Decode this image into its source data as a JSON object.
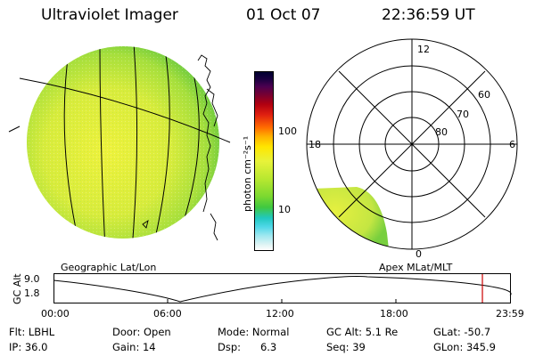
{
  "header": {
    "instrument": "Ultraviolet Imager",
    "date": "01 Oct 07",
    "time": "22:36:59 UT"
  },
  "colorbar": {
    "unit_label": "photon cm⁻²s⁻¹",
    "ticks": [
      "100",
      "10"
    ]
  },
  "polar_plot": {
    "mlt_labels": [
      "12",
      "18",
      "6",
      "0"
    ],
    "lat_labels": [
      "60",
      "70",
      "80"
    ]
  },
  "map_labels": {
    "left": "Geographic Lat/Lon",
    "right": "Apex MLat/MLT"
  },
  "altitude_plot": {
    "ylabel": "GC Alt",
    "y_ticks": [
      "9.0",
      "1.8"
    ],
    "x_ticks": [
      "00:00",
      "06:00",
      "12:00",
      "18:00",
      "23:59"
    ]
  },
  "footer": {
    "filter": "Flt: LBHL",
    "ip": "IP: 36.0",
    "door": "Door: Open",
    "gain": "Gain: 14",
    "mode": "Mode: Normal",
    "dsp": "Dsp:      6.3",
    "gc_alt": "GC Alt: 5.1 Re",
    "seq": "Seq: 39",
    "glat": "GLat: -50.7",
    "glon": "GLon: 345.9"
  },
  "colors": {
    "earth_disk": "#d8ee3a",
    "earth_edge": "#7ccf3a",
    "polar_glow": "#d6ec48",
    "current_time_marker": "#cc0000"
  }
}
